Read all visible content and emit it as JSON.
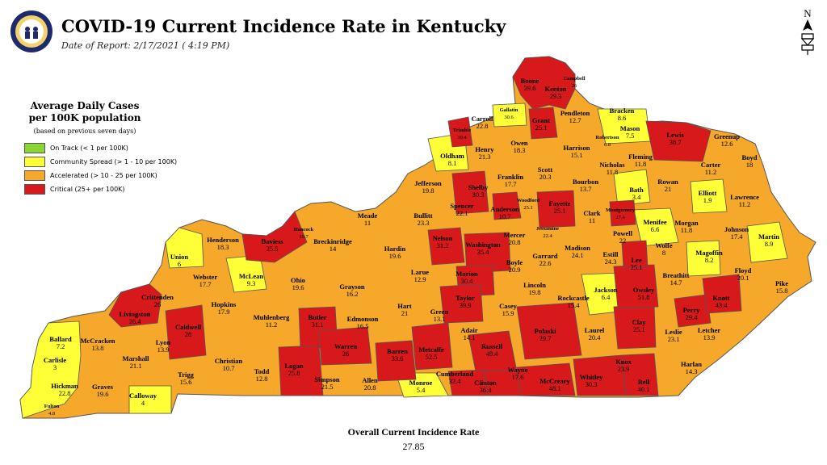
{
  "header": {
    "title": "COVID-19 Current Incidence Rate in Kentucky",
    "subtitle": "Date of Report: 2/17/2021 ( 4:19 PM)"
  },
  "compass": {
    "label": "N"
  },
  "legend": {
    "title_line1": "Average Daily Cases",
    "title_line2": "per 100K population",
    "note": "(based on previous seven days)",
    "items": [
      {
        "label": "On Track (< 1 per 100K)",
        "color": "#8ad532"
      },
      {
        "label": "Community Spread (> 1 - 10 per 100K)",
        "color": "#ffff38"
      },
      {
        "label": "Accelerated (> 10 - 25 per 100K)",
        "color": "#f5a829"
      },
      {
        "label": "Critical (25+ per 100K)",
        "color": "#d7191c"
      }
    ]
  },
  "overall": {
    "label": "Overall Current Incidence Rate",
    "value": "27.85"
  },
  "counties": [
    {
      "name": "Boone",
      "value": "29.6"
    },
    {
      "name": "Kenton",
      "value": "29.3"
    },
    {
      "name": "Campbell",
      "value": "26"
    },
    {
      "name": "Gallatin",
      "value": "30.6"
    },
    {
      "name": "Carroll",
      "value": "22.8"
    },
    {
      "name": "Grant",
      "value": "25.1"
    },
    {
      "name": "Pendleton",
      "value": "12.7"
    },
    {
      "name": "Bracken",
      "value": "8.6"
    },
    {
      "name": "Mason",
      "value": "7.5"
    },
    {
      "name": "Robertson",
      "value": "6.8"
    },
    {
      "name": "Lewis",
      "value": "38.7"
    },
    {
      "name": "Greenup",
      "value": "12.6"
    },
    {
      "name": "Boyd",
      "value": "18"
    },
    {
      "name": "Trimble",
      "value": "30.4"
    },
    {
      "name": "Henry",
      "value": "21.3"
    },
    {
      "name": "Owen",
      "value": "18.3"
    },
    {
      "name": "Harrison",
      "value": "15.1"
    },
    {
      "name": "Fleming",
      "value": "11.8"
    },
    {
      "name": "Nicholas",
      "value": "11.8"
    },
    {
      "name": "Carter",
      "value": "11.2"
    },
    {
      "name": "Oldham",
      "value": "8.1"
    },
    {
      "name": "Scott",
      "value": "20.3"
    },
    {
      "name": "Franklin",
      "value": "17.7"
    },
    {
      "name": "Shelby",
      "value": "30.3"
    },
    {
      "name": "Bourbon",
      "value": "13.7"
    },
    {
      "name": "Bath",
      "value": "3.4"
    },
    {
      "name": "Rowan",
      "value": "21"
    },
    {
      "name": "Elliott",
      "value": "1.9"
    },
    {
      "name": "Lawrence",
      "value": "11.2"
    },
    {
      "name": "Jefferson",
      "value": "19.8"
    },
    {
      "name": "Spencer",
      "value": "22.1"
    },
    {
      "name": "Anderson",
      "value": "10.7"
    },
    {
      "name": "Woodford",
      "value": "25.1"
    },
    {
      "name": "Fayette",
      "value": "25.1"
    },
    {
      "name": "Montgomery",
      "value": "27.4"
    },
    {
      "name": "Clark",
      "value": "11"
    },
    {
      "name": "Menifee",
      "value": "6.6"
    },
    {
      "name": "Morgan",
      "value": "11.8"
    },
    {
      "name": "Johnson",
      "value": "17.4"
    },
    {
      "name": "Martin",
      "value": "8.9"
    },
    {
      "name": "Meade",
      "value": "11"
    },
    {
      "name": "Bullitt",
      "value": "23.3"
    },
    {
      "name": "Hancock",
      "value": "19.7"
    },
    {
      "name": "Henderson",
      "value": "18.3"
    },
    {
      "name": "Daviess",
      "value": "25.5"
    },
    {
      "name": "Breckinridge",
      "value": "14"
    },
    {
      "name": "Hardin",
      "value": "19.6"
    },
    {
      "name": "Nelson",
      "value": "31.2"
    },
    {
      "name": "Washington",
      "value": "35.4"
    },
    {
      "name": "Mercer",
      "value": "20.8"
    },
    {
      "name": "Jessamine",
      "value": "22.4"
    },
    {
      "name": "Garrard",
      "value": "22.6"
    },
    {
      "name": "Madison",
      "value": "24.1"
    },
    {
      "name": "Estill",
      "value": "24.3"
    },
    {
      "name": "Powell",
      "value": "22"
    },
    {
      "name": "Wolfe",
      "value": "8"
    },
    {
      "name": "Magoffin",
      "value": "8.2"
    },
    {
      "name": "Floyd",
      "value": "20.1"
    },
    {
      "name": "Union",
      "value": "6"
    },
    {
      "name": "Webster",
      "value": "17.7"
    },
    {
      "name": "McLean",
      "value": "9.3"
    },
    {
      "name": "Ohio",
      "value": "19.6"
    },
    {
      "name": "Grayson",
      "value": "16.2"
    },
    {
      "name": "Larue",
      "value": "12.9"
    },
    {
      "name": "Marion",
      "value": "30.4"
    },
    {
      "name": "Boyle",
      "value": "20.9"
    },
    {
      "name": "Lincoln",
      "value": "19.8"
    },
    {
      "name": "Lee",
      "value": "25.1"
    },
    {
      "name": "Breathitt",
      "value": "14.7"
    },
    {
      "name": "Knott",
      "value": "43.4"
    },
    {
      "name": "Pike",
      "value": "15.8"
    },
    {
      "name": "Crittenden",
      "value": "26"
    },
    {
      "name": "Hopkins",
      "value": "17.9"
    },
    {
      "name": "Muhlenberg",
      "value": "11.2"
    },
    {
      "name": "Butler",
      "value": "31.1"
    },
    {
      "name": "Edmonson",
      "value": "16.5"
    },
    {
      "name": "Hart",
      "value": "21"
    },
    {
      "name": "Green",
      "value": "13.1"
    },
    {
      "name": "Taylor",
      "value": "39.9"
    },
    {
      "name": "Casey",
      "value": "15.9"
    },
    {
      "name": "Rockcastle",
      "value": "15.4"
    },
    {
      "name": "Jackson",
      "value": "6.4"
    },
    {
      "name": "Owsley",
      "value": "51.8"
    },
    {
      "name": "Perry",
      "value": "29.4"
    },
    {
      "name": "Livingston",
      "value": "26.4"
    },
    {
      "name": "Caldwell",
      "value": "28"
    },
    {
      "name": "Lyon",
      "value": "13.9"
    },
    {
      "name": "Christian",
      "value": "10.7"
    },
    {
      "name": "Todd",
      "value": "12.8"
    },
    {
      "name": "Logan",
      "value": "25.8"
    },
    {
      "name": "Warren",
      "value": "26"
    },
    {
      "name": "Barren",
      "value": "33.6"
    },
    {
      "name": "Metcalfe",
      "value": "52.5"
    },
    {
      "name": "Adair",
      "value": "14.1"
    },
    {
      "name": "Russell",
      "value": "49.4"
    },
    {
      "name": "Pulaski",
      "value": "29.7"
    },
    {
      "name": "Laurel",
      "value": "20.4"
    },
    {
      "name": "Clay",
      "value": "25.1"
    },
    {
      "name": "Leslie",
      "value": "23.1"
    },
    {
      "name": "Letcher",
      "value": "13.9"
    },
    {
      "name": "Ballard",
      "value": "7.2"
    },
    {
      "name": "McCracken",
      "value": "13.8"
    },
    {
      "name": "Marshall",
      "value": "21.1"
    },
    {
      "name": "Trigg",
      "value": "15.6"
    },
    {
      "name": "Simpson",
      "value": "21.5"
    },
    {
      "name": "Allen",
      "value": "20.8"
    },
    {
      "name": "Monroe",
      "value": "5.4"
    },
    {
      "name": "Cumberland",
      "value": "32.4"
    },
    {
      "name": "Clinton",
      "value": "36.4"
    },
    {
      "name": "Wayne",
      "value": "17.6"
    },
    {
      "name": "McCreary",
      "value": "48.1"
    },
    {
      "name": "Whitley",
      "value": "30.3"
    },
    {
      "name": "Knox",
      "value": "23.9"
    },
    {
      "name": "Bell",
      "value": "40.1"
    },
    {
      "name": "Harlan",
      "value": "14.3"
    },
    {
      "name": "Carlisle",
      "value": "3"
    },
    {
      "name": "Hickman",
      "value": "22.8"
    },
    {
      "name": "Graves",
      "value": "19.6"
    },
    {
      "name": "Calloway",
      "value": "4"
    },
    {
      "name": "Fulton",
      "value": "4.8"
    }
  ]
}
